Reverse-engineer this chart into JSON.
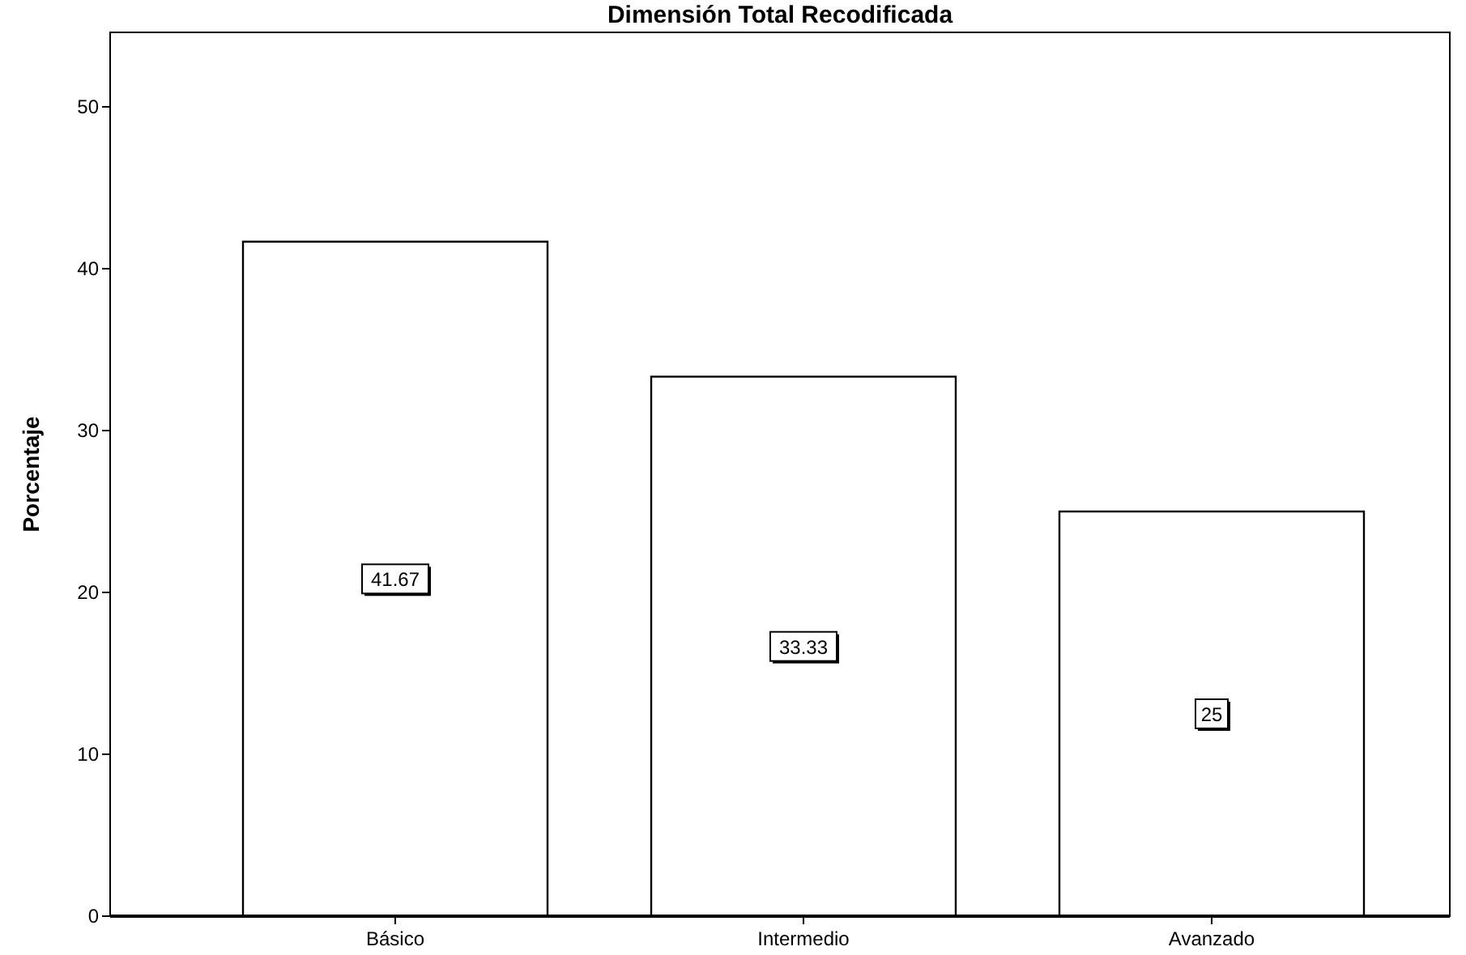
{
  "chart_data": {
    "type": "bar",
    "title": "Dimensión Total Recodificada",
    "ylabel": "Porcentaje",
    "categories": [
      "Básico",
      "Intermedio",
      "Avanzado"
    ],
    "values": [
      41.67,
      33.33,
      25
    ],
    "color": "#ffffff",
    "ylim": [
      0,
      54.6
    ],
    "yticks": [
      0,
      10,
      20,
      30,
      40,
      50
    ],
    "data_labels": true,
    "grid": false
  }
}
